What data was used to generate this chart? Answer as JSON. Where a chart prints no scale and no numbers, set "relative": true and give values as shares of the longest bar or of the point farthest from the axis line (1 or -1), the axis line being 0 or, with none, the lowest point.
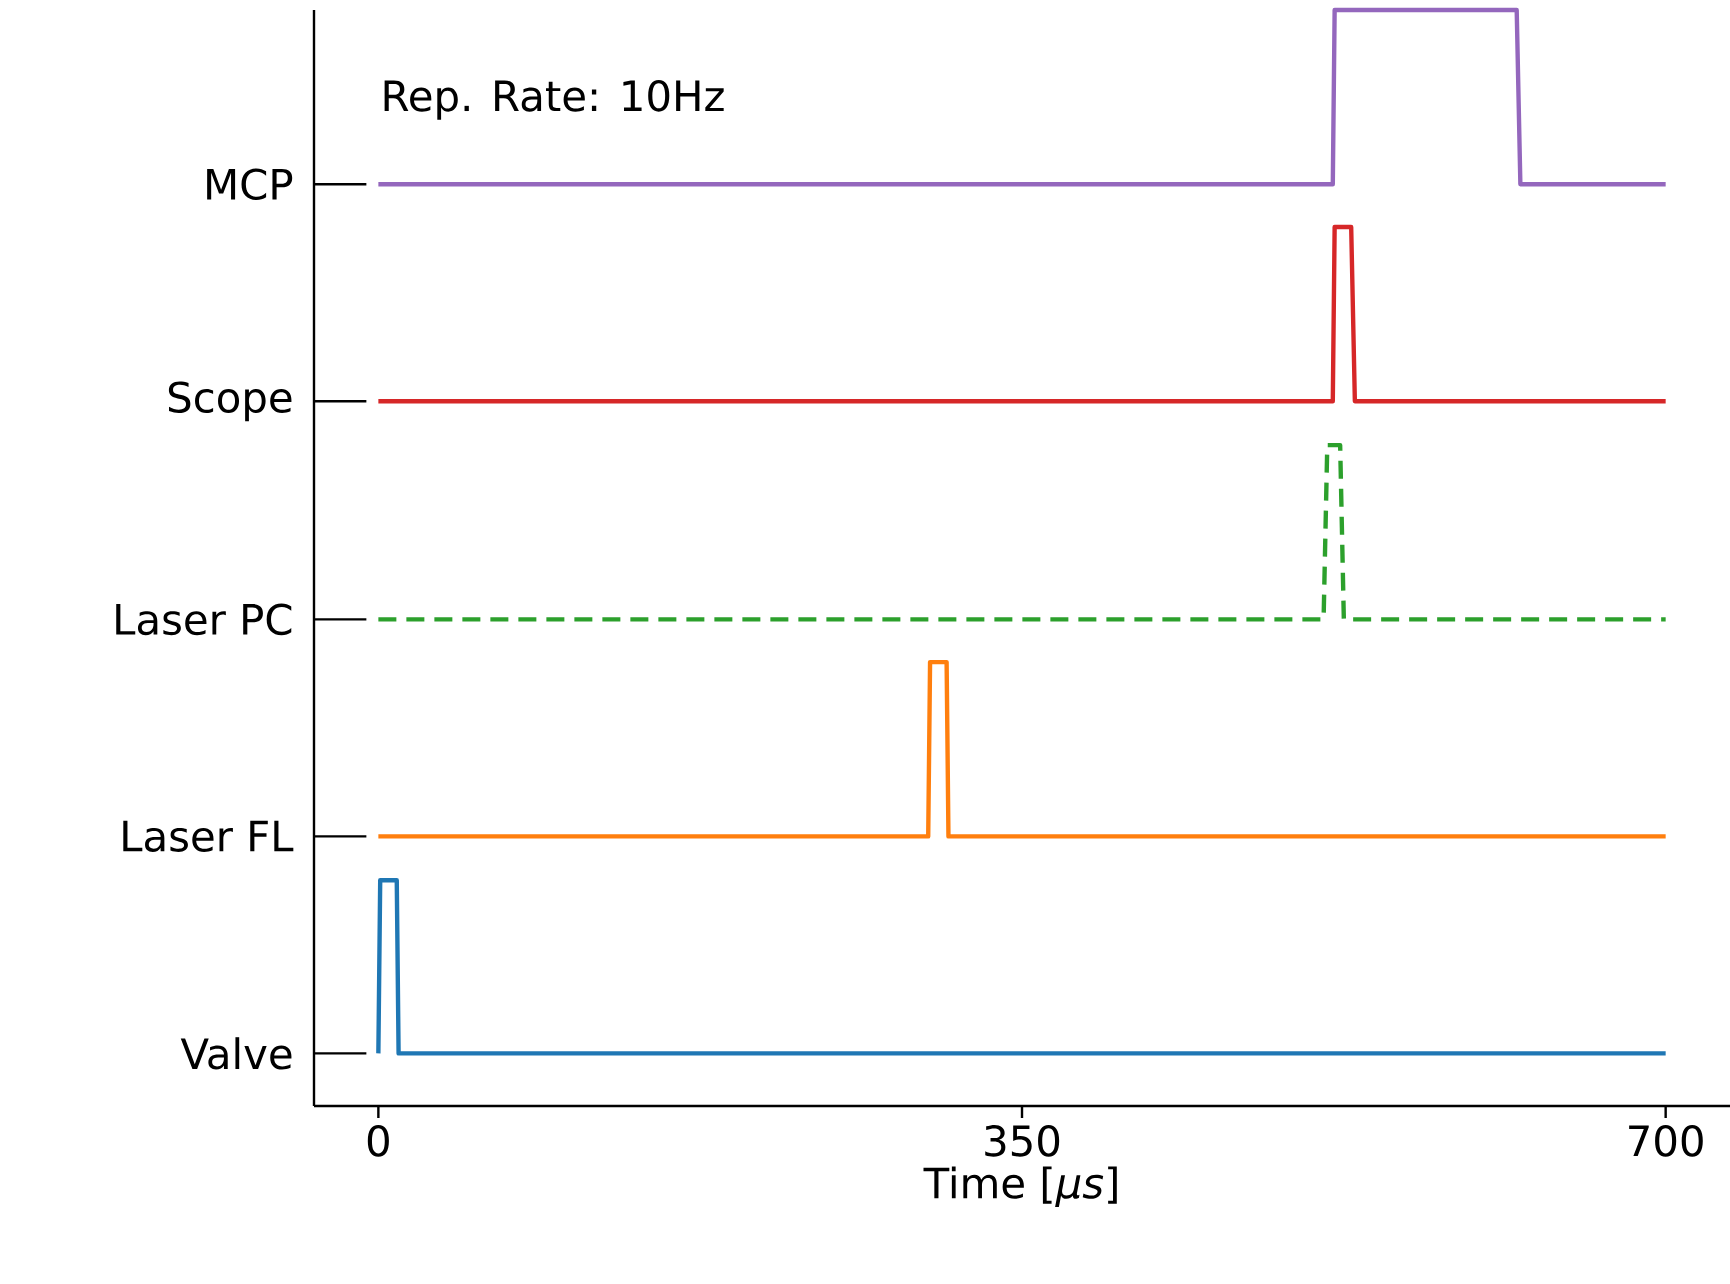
{
  "chart_data": {
    "type": "line",
    "relative": true,
    "xlabel": "Time [*μs*]",
    "xlim": [
      -35,
      735
    ],
    "xticks": [
      0,
      350,
      700
    ],
    "annotations": [
      "Rep. Rate: 10Hz"
    ],
    "series": [
      {
        "name": "Valve",
        "color": "#1f77b4",
        "x": [
          0,
          1,
          10,
          11,
          700
        ],
        "values": [
          0.048,
          0.206,
          0.206,
          0.048,
          0.048
        ]
      },
      {
        "name": "Laser FL",
        "color": "#ff7f0e",
        "x": [
          0,
          299,
          300,
          309,
          310,
          700
        ],
        "values": [
          0.246,
          0.246,
          0.405,
          0.405,
          0.246,
          0.246
        ]
      },
      {
        "name": "Laser PC",
        "color": "#2ca02c",
        "line_style": "dashed",
        "x": [
          0,
          514,
          516,
          523,
          525,
          700
        ],
        "values": [
          0.444,
          0.444,
          0.603,
          0.603,
          0.444,
          0.444
        ]
      },
      {
        "name": "Scope",
        "color": "#d62728",
        "x": [
          0,
          519,
          520,
          529,
          531,
          700
        ],
        "values": [
          0.643,
          0.643,
          0.802,
          0.802,
          0.643,
          0.643
        ]
      },
      {
        "name": "MCP",
        "color": "#9467bd",
        "x": [
          0,
          519,
          520,
          619,
          621,
          700
        ],
        "values": [
          0.841,
          0.841,
          1,
          1,
          0.841,
          0.841
        ]
      }
    ]
  }
}
